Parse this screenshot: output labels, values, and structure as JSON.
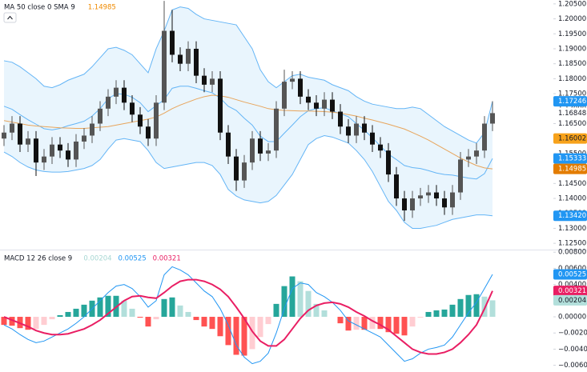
{
  "chart_data": [
    {
      "type": "candlestick",
      "legend": {
        "text": "MA 50 close 0 SMA 9",
        "values": [
          {
            "text": "1.14985",
            "color": "#ef8a00"
          }
        ]
      },
      "ylim": [
        1.1229,
        1.2063
      ],
      "yticks": [
        {
          "value": 1.125,
          "label": "1.12500"
        },
        {
          "value": 1.13,
          "label": "1.13000"
        },
        {
          "value": 1.135,
          "label": "1.13500"
        },
        {
          "value": 1.14,
          "label": "1.14000"
        },
        {
          "value": 1.145,
          "label": "1.14500"
        },
        {
          "value": 1.15,
          "label": "1.15000"
        },
        {
          "value": 1.155,
          "label": "1.15500"
        },
        {
          "value": 1.16,
          "label": "1.16000"
        },
        {
          "value": 1.165,
          "label": "1.16500"
        },
        {
          "value": 1.17,
          "label": "1.17000"
        },
        {
          "value": 1.175,
          "label": "1.17500"
        },
        {
          "value": 1.18,
          "label": "1.18000"
        },
        {
          "value": 1.185,
          "label": "1.18500"
        },
        {
          "value": 1.19,
          "label": "1.19000"
        },
        {
          "value": 1.195,
          "label": "1.19500"
        },
        {
          "value": 1.2,
          "label": "1.20000"
        },
        {
          "value": 1.205,
          "label": "1.20500"
        }
      ],
      "up_color": "#555555",
      "down_color": "#111111",
      "open": [
        1.16,
        1.162,
        1.165,
        1.158,
        1.16,
        1.152,
        1.154,
        1.158,
        1.156,
        1.153,
        1.159,
        1.161,
        1.165,
        1.17,
        1.174,
        1.177,
        1.172,
        1.168,
        1.164,
        1.16,
        1.172,
        1.196,
        1.188,
        1.185,
        1.19,
        1.181,
        1.178,
        1.18,
        1.162,
        1.154,
        1.146,
        1.152,
        1.16,
        1.155,
        1.156,
        1.17,
        1.179,
        1.18,
        1.174,
        1.172,
        1.17,
        1.173,
        1.169,
        1.164,
        1.161,
        1.165,
        1.162,
        1.158,
        1.156,
        1.148,
        1.14,
        1.136,
        1.14,
        1.141,
        1.142,
        1.14,
        1.137,
        1.142,
        1.153,
        1.154,
        1.156,
        1.165
      ],
      "high": [
        1.1645,
        1.1675,
        1.1675,
        1.1625,
        1.1625,
        1.1565,
        1.1605,
        1.1605,
        1.1585,
        1.1615,
        1.1635,
        1.1675,
        1.1725,
        1.1765,
        1.1795,
        1.1795,
        1.1745,
        1.1705,
        1.1665,
        1.1745,
        1.206,
        1.203,
        1.1905,
        1.1925,
        1.1925,
        1.1835,
        1.1825,
        1.1825,
        1.1645,
        1.1565,
        1.1545,
        1.1625,
        1.1625,
        1.1585,
        1.1725,
        1.183,
        1.1825,
        1.1825,
        1.1765,
        1.1745,
        1.1755,
        1.1755,
        1.1715,
        1.1665,
        1.1675,
        1.1675,
        1.1645,
        1.1605,
        1.1585,
        1.1505,
        1.1425,
        1.1425,
        1.1435,
        1.1445,
        1.1445,
        1.1425,
        1.1445,
        1.1555,
        1.1565,
        1.1585,
        1.1675,
        1.1725
      ],
      "low": [
        1.1575,
        1.1595,
        1.1555,
        1.1555,
        1.1475,
        1.1495,
        1.1515,
        1.1535,
        1.1505,
        1.1505,
        1.1565,
        1.1585,
        1.1625,
        1.1675,
        1.1715,
        1.1695,
        1.1655,
        1.1615,
        1.1575,
        1.1575,
        1.1695,
        1.1855,
        1.1825,
        1.1825,
        1.1785,
        1.1755,
        1.1755,
        1.1595,
        1.1515,
        1.1425,
        1.1435,
        1.1495,
        1.1525,
        1.1525,
        1.1535,
        1.1675,
        1.1765,
        1.1715,
        1.1695,
        1.1675,
        1.1675,
        1.1665,
        1.1615,
        1.1585,
        1.1585,
        1.1595,
        1.1555,
        1.1535,
        1.1455,
        1.1375,
        1.1325,
        1.1335,
        1.1375,
        1.1385,
        1.1375,
        1.1345,
        1.1345,
        1.1395,
        1.1505,
        1.1515,
        1.1535,
        1.1625
      ],
      "close": [
        1.162,
        1.165,
        1.158,
        1.16,
        1.152,
        1.154,
        1.158,
        1.156,
        1.153,
        1.159,
        1.161,
        1.165,
        1.17,
        1.174,
        1.177,
        1.172,
        1.168,
        1.164,
        1.16,
        1.172,
        1.196,
        1.188,
        1.185,
        1.19,
        1.181,
        1.178,
        1.18,
        1.162,
        1.154,
        1.146,
        1.152,
        1.16,
        1.155,
        1.156,
        1.17,
        1.179,
        1.18,
        1.174,
        1.172,
        1.17,
        1.173,
        1.169,
        1.164,
        1.161,
        1.165,
        1.162,
        1.158,
        1.156,
        1.148,
        1.14,
        1.136,
        1.14,
        1.141,
        1.142,
        1.14,
        1.137,
        1.142,
        1.153,
        1.154,
        1.156,
        1.165,
        1.1685
      ],
      "band_fill": "#e3f2fd",
      "lines": [
        {
          "color": "#64b5f6",
          "values": [
            1.186,
            1.1855,
            1.184,
            1.182,
            1.18,
            1.1775,
            1.177,
            1.178,
            1.1795,
            1.1805,
            1.1815,
            1.184,
            1.187,
            1.19,
            1.1905,
            1.1895,
            1.188,
            1.185,
            1.182,
            1.19,
            1.196,
            1.203,
            1.204,
            1.2035,
            1.2015,
            1.2,
            1.1995,
            1.199,
            1.1985,
            1.198,
            1.194,
            1.19,
            1.183,
            1.179,
            1.177,
            1.179,
            1.181,
            1.1815,
            1.1805,
            1.18,
            1.1795,
            1.178,
            1.177,
            1.176,
            1.174,
            1.1725,
            1.1715,
            1.171,
            1.1705,
            1.17,
            1.17,
            1.1705,
            1.17,
            1.168,
            1.166,
            1.164,
            1.1625,
            1.161,
            1.1595,
            1.1585,
            1.162,
            1.17246
          ]
        },
        {
          "color": "#64b5f6",
          "values": [
            1.1708,
            1.1698,
            1.168,
            1.1663,
            1.1648,
            1.1633,
            1.1629,
            1.1634,
            1.1643,
            1.165,
            1.1658,
            1.1675,
            1.17,
            1.1733,
            1.175,
            1.1748,
            1.1738,
            1.172,
            1.169,
            1.171,
            1.173,
            1.1768,
            1.1775,
            1.1775,
            1.1768,
            1.176,
            1.1753,
            1.1735,
            1.1708,
            1.1694,
            1.1668,
            1.1645,
            1.1608,
            1.159,
            1.159,
            1.1618,
            1.1645,
            1.1673,
            1.1693,
            1.17,
            1.1703,
            1.1693,
            1.1683,
            1.1673,
            1.165,
            1.1628,
            1.1603,
            1.1575,
            1.1548,
            1.153,
            1.151,
            1.1503,
            1.15,
            1.1493,
            1.1485,
            1.148,
            1.1478,
            1.1473,
            1.1468,
            1.1465,
            1.1483,
            1.15333
          ]
        },
        {
          "color": "#64b5f6",
          "values": [
            1.1555,
            1.154,
            1.152,
            1.1505,
            1.1495,
            1.149,
            1.1488,
            1.1488,
            1.149,
            1.1495,
            1.15,
            1.151,
            1.153,
            1.1565,
            1.1595,
            1.16,
            1.1595,
            1.159,
            1.156,
            1.152,
            1.15,
            1.1505,
            1.151,
            1.1515,
            1.152,
            1.152,
            1.151,
            1.148,
            1.143,
            1.1408,
            1.1395,
            1.139,
            1.1385,
            1.139,
            1.141,
            1.1445,
            1.148,
            1.153,
            1.158,
            1.16,
            1.161,
            1.1605,
            1.1595,
            1.1585,
            1.156,
            1.153,
            1.149,
            1.144,
            1.139,
            1.136,
            1.132,
            1.13,
            1.13,
            1.1305,
            1.131,
            1.132,
            1.133,
            1.1335,
            1.134,
            1.1345,
            1.1345,
            1.1342
          ]
        },
        {
          "color": "#e8a55c",
          "values": [
            1.166,
            1.1655,
            1.165,
            1.1645,
            1.1642,
            1.164,
            1.1638,
            1.1636,
            1.1635,
            1.1634,
            1.1634,
            1.1636,
            1.1638,
            1.164,
            1.1645,
            1.165,
            1.1655,
            1.166,
            1.1665,
            1.1672,
            1.1685,
            1.17,
            1.1712,
            1.1722,
            1.1732,
            1.174,
            1.1745,
            1.1743,
            1.1738,
            1.173,
            1.1722,
            1.1715,
            1.1708,
            1.17,
            1.1696,
            1.1694,
            1.1693,
            1.1692,
            1.1692,
            1.1691,
            1.169,
            1.1688,
            1.1685,
            1.168,
            1.1675,
            1.1668,
            1.1662,
            1.1655,
            1.1648,
            1.164,
            1.1632,
            1.162,
            1.1608,
            1.1595,
            1.158,
            1.1565,
            1.155,
            1.1535,
            1.1522,
            1.151,
            1.1502,
            1.14985
          ]
        }
      ],
      "markers": [
        {
          "value": 1.17246,
          "label": "1.17246",
          "color": "#2196f3",
          "text_color": "#ffffff"
        },
        {
          "value": 1.16848,
          "label": "1.16848",
          "color": "#ffffff",
          "text_color": "#131722"
        },
        {
          "value": 1.16002,
          "label": "1.16002",
          "color": "#f7a21b",
          "text_color": "#131722"
        },
        {
          "value": 1.15333,
          "label": "1.15333",
          "color": "#2196f3",
          "text_color": "#ffffff"
        },
        {
          "value": 1.14985,
          "label": "1.14985",
          "color": "#e37c00",
          "text_color": "#ffffff"
        },
        {
          "value": 1.1342,
          "label": "1.13420",
          "color": "#2196f3",
          "text_color": "#ffffff"
        }
      ]
    },
    {
      "type": "macd",
      "legend": {
        "text": "MACD 12 26 close 9",
        "values": [
          {
            "text": "0.00204",
            "color": "#a7d7d3"
          },
          {
            "text": "0.00525",
            "color": "#2196f3"
          },
          {
            "text": "0.00321",
            "color": "#e91e63"
          }
        ]
      },
      "ylim": [
        -0.00683,
        0.00832
      ],
      "yticks": [
        {
          "value": -0.006,
          "label": "−0.00600"
        },
        {
          "value": -0.004,
          "label": "−0.00400"
        },
        {
          "value": -0.002,
          "label": "−0.00200"
        },
        {
          "value": 0,
          "label": "0.00000"
        },
        {
          "value": 0.002,
          "label": "0.00200"
        },
        {
          "value": 0.004,
          "label": "0.00400"
        },
        {
          "value": 0.006,
          "label": "0.00600"
        },
        {
          "value": 0.008,
          "label": "0.00800"
        }
      ],
      "hist_colors": [
        "#26a69a",
        "#b2dfdb",
        "#ff5252",
        "#ffcdd2"
      ],
      "histogram": [
        -0.001,
        -0.0011,
        -0.0014,
        -0.0016,
        -0.0015,
        -0.001,
        -0.0003,
        0.0002,
        0.0006,
        0.001,
        0.0015,
        0.002,
        0.0024,
        0.0026,
        0.0026,
        0.002,
        0.001,
        -0.0001,
        -0.0012,
        -0.0003,
        0.0022,
        0.0024,
        0.0014,
        0.0006,
        -0.0004,
        -0.0012,
        -0.0015,
        -0.0024,
        -0.0035,
        -0.0047,
        -0.0048,
        -0.004,
        -0.0025,
        -0.0009,
        0.0016,
        0.0038,
        0.005,
        0.0044,
        0.0032,
        0.0016,
        0.0008,
        0.0,
        -0.0008,
        -0.0017,
        -0.0016,
        -0.0016,
        -0.0015,
        -0.0015,
        -0.0019,
        -0.0021,
        -0.0023,
        -0.0012,
        -0.0001,
        0.0006,
        0.0008,
        0.0009,
        0.0015,
        0.0022,
        0.0027,
        0.0028,
        0.0025,
        0.00204
      ],
      "lines": [
        {
          "color": "#2196f3",
          "width": 1,
          "values": [
            -0.001,
            -0.0015,
            -0.0022,
            -0.0028,
            -0.0032,
            -0.003,
            -0.0025,
            -0.002,
            -0.0015,
            -0.0008,
            0.0,
            0.001,
            0.002,
            0.003,
            0.0038,
            0.004,
            0.0035,
            0.0025,
            0.0012,
            0.002,
            0.0052,
            0.0062,
            0.0058,
            0.0052,
            0.0042,
            0.0032,
            0.0025,
            0.001,
            -0.001,
            -0.0035,
            -0.005,
            -0.0058,
            -0.0055,
            -0.0045,
            -0.002,
            0.001,
            0.0035,
            0.0042,
            0.004,
            0.003,
            0.0025,
            0.0018,
            0.0008,
            -0.0005,
            -0.001,
            -0.0015,
            -0.002,
            -0.0025,
            -0.0035,
            -0.0045,
            -0.0055,
            -0.0052,
            -0.0045,
            -0.004,
            -0.0038,
            -0.0035,
            -0.0025,
            -0.001,
            0.0005,
            0.0018,
            0.0035,
            0.00525
          ]
        },
        {
          "color": "#e91e63",
          "width": 2,
          "values": [
            0.0,
            -0.0004,
            -0.0008,
            -0.0012,
            -0.0017,
            -0.002,
            -0.0022,
            -0.0022,
            -0.0021,
            -0.0018,
            -0.0015,
            -0.001,
            -0.0004,
            0.0004,
            0.0012,
            0.002,
            0.0025,
            0.0026,
            0.0024,
            0.0023,
            0.003,
            0.0038,
            0.0044,
            0.0046,
            0.0046,
            0.0044,
            0.004,
            0.0034,
            0.0025,
            0.0012,
            -0.0002,
            -0.0018,
            -0.003,
            -0.0036,
            -0.0036,
            -0.0028,
            -0.0015,
            -0.0002,
            0.0008,
            0.0014,
            0.0017,
            0.0018,
            0.0016,
            0.0012,
            0.0006,
            0.0001,
            -0.0005,
            -0.001,
            -0.0016,
            -0.0024,
            -0.0032,
            -0.004,
            -0.0044,
            -0.0046,
            -0.0046,
            -0.0044,
            -0.004,
            -0.0032,
            -0.0022,
            -0.001,
            0.001,
            0.00321
          ]
        }
      ],
      "markers": [
        {
          "value": 0.00525,
          "label": "0.00525",
          "color": "#2196f3",
          "text_color": "#ffffff"
        },
        {
          "value": 0.00321,
          "label": "0.00321",
          "color": "#e91e63",
          "text_color": "#ffffff"
        },
        {
          "value": 0.00204,
          "label": "0.00204",
          "color": "#b2dfdb",
          "text_color": "#131722"
        }
      ]
    }
  ]
}
